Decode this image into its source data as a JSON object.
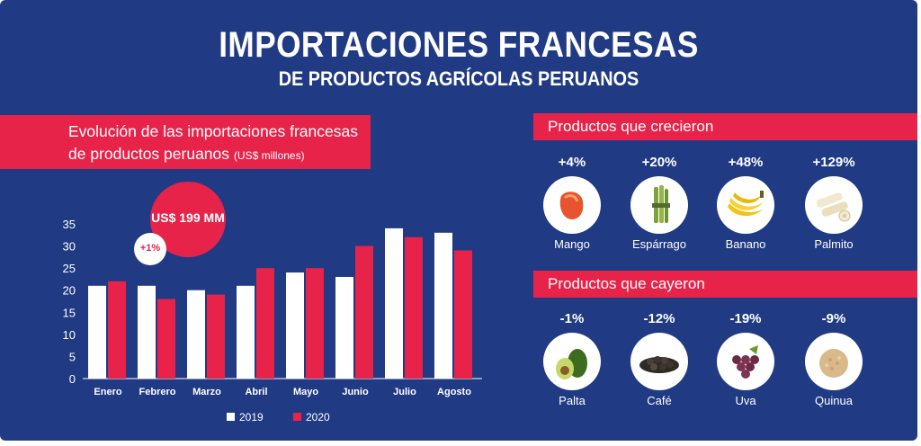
{
  "title": "IMPORTACIONES FRANCESAS",
  "subtitle": "DE PRODUCTOS AGRÍCOLAS PERUANOS",
  "chart_panel": {
    "heading_line1": "Evolución de las importaciones francesas",
    "heading_line2": "de productos peruanos",
    "heading_unit": "(US$ millones)",
    "callout_total": "US$ 199 MM",
    "callout_change": "+1%"
  },
  "chart_data": {
    "type": "bar",
    "categories": [
      "Enero",
      "Febrero",
      "Marzo",
      "Abril",
      "Mayo",
      "Junio",
      "Julio",
      "Agosto"
    ],
    "series": [
      {
        "name": "2019",
        "values": [
          21,
          21,
          20,
          21,
          24,
          23,
          34,
          33
        ],
        "color": "#ffffff"
      },
      {
        "name": "2020",
        "values": [
          22,
          18,
          19,
          25,
          25,
          30,
          32,
          29
        ],
        "color": "#e8234a"
      }
    ],
    "yticks": [
      0,
      5,
      10,
      15,
      20,
      25,
      30,
      35
    ],
    "ylim": [
      0,
      35
    ],
    "grid": false,
    "legend": "bottom"
  },
  "grew": {
    "heading": "Productos que crecieron",
    "items": [
      {
        "pct": "+4%",
        "name": "Mango",
        "icon": "mango-icon"
      },
      {
        "pct": "+20%",
        "name": "Espárrago",
        "icon": "asparagus-icon"
      },
      {
        "pct": "+48%",
        "name": "Banano",
        "icon": "banana-icon"
      },
      {
        "pct": "+129%",
        "name": "Palmito",
        "icon": "palm-heart-icon"
      }
    ]
  },
  "fell": {
    "heading": "Productos que cayeron",
    "items": [
      {
        "pct": "-1%",
        "name": "Palta",
        "icon": "avocado-icon"
      },
      {
        "pct": "-12%",
        "name": "Café",
        "icon": "coffee-beans-icon"
      },
      {
        "pct": "-19%",
        "name": "Uva",
        "icon": "grapes-icon"
      },
      {
        "pct": "-9%",
        "name": "Quinua",
        "icon": "quinoa-icon"
      }
    ]
  },
  "colors": {
    "background": "#203a84",
    "accent": "#e8234a",
    "light": "#ffffff"
  }
}
